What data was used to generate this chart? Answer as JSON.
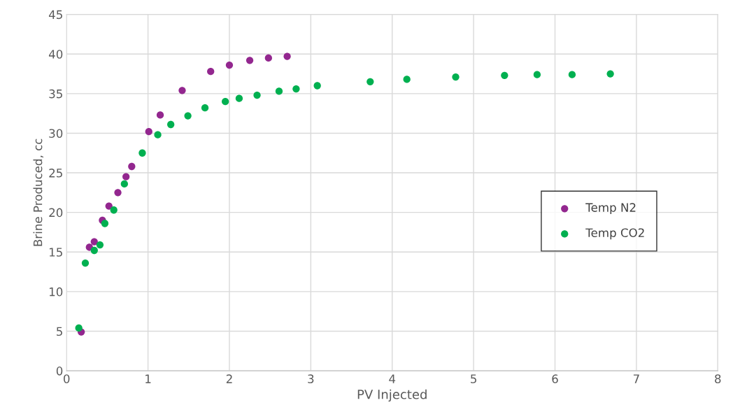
{
  "chart_data": {
    "type": "scatter",
    "xlabel": "PV Injected",
    "ylabel": "Brine Produced, cc",
    "xlim": [
      0,
      8
    ],
    "xticks": [
      0,
      1,
      2,
      3,
      4,
      5,
      6,
      7,
      8
    ],
    "ylim": [
      0,
      45
    ],
    "yticks": [
      0,
      5,
      10,
      15,
      20,
      25,
      30,
      35,
      40,
      45
    ],
    "grid": true,
    "legend": "right",
    "marker": "circle",
    "series": [
      {
        "name": "Temp N2",
        "color": "#93278f",
        "x": [
          0.18,
          0.28,
          0.34,
          0.44,
          0.52,
          0.63,
          0.73,
          0.8,
          1.01,
          1.15,
          1.42,
          1.77,
          2.0,
          2.25,
          2.48,
          2.71
        ],
        "values": [
          4.9,
          15.6,
          16.3,
          19.0,
          20.8,
          22.5,
          24.5,
          25.8,
          30.2,
          32.3,
          35.4,
          37.8,
          38.6,
          39.2,
          39.5,
          39.7
        ]
      },
      {
        "name": "Temp CO2",
        "color": "#00b050",
        "x": [
          0.15,
          0.23,
          0.34,
          0.41,
          0.47,
          0.58,
          0.71,
          0.93,
          1.12,
          1.28,
          1.49,
          1.7,
          1.95,
          2.12,
          2.34,
          2.61,
          2.82,
          3.08,
          3.73,
          4.18,
          4.78,
          5.38,
          5.78,
          6.21,
          6.68
        ],
        "values": [
          5.4,
          13.6,
          15.2,
          15.9,
          18.6,
          20.3,
          23.6,
          27.5,
          29.8,
          31.1,
          32.2,
          33.2,
          34.0,
          34.4,
          34.8,
          35.3,
          35.6,
          36.0,
          36.5,
          36.8,
          37.1,
          37.3,
          37.4,
          37.4,
          37.5
        ]
      }
    ]
  }
}
